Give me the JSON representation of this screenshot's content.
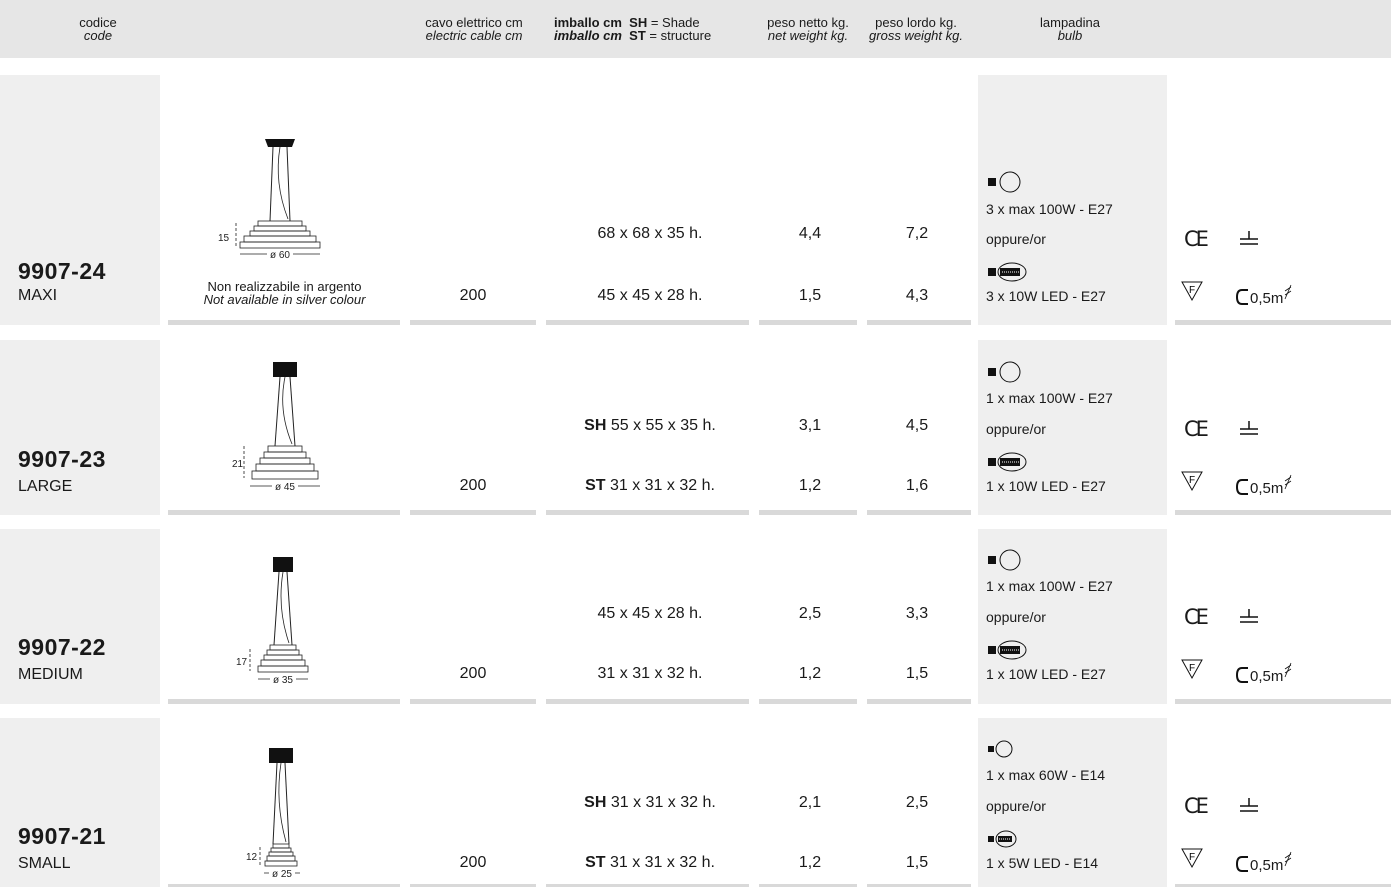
{
  "header": {
    "code_it": "codice",
    "code_en": "code",
    "cable_it": "cavo elettrico cm",
    "cable_en": "electric cable cm",
    "pack_it_label": "imballo cm",
    "pack_en_label": "imballo cm",
    "sh_abbr": "SH",
    "sh_text": "= Shade",
    "st_abbr": "ST",
    "st_text": "= structure",
    "net_it": "peso netto kg.",
    "net_en": "net weight kg.",
    "gross_it": "peso lordo kg.",
    "gross_en": "gross weight kg.",
    "bulb_it": "lampadina",
    "bulb_en": "bulb"
  },
  "rows": [
    {
      "code": "9907-24",
      "size": "MAXI",
      "dim_h": "15",
      "dim_d": "ø 60",
      "note_it": "Non realizzabile in argento",
      "note_en": "Not available in silver colour",
      "cable": "200",
      "pack1_prefix": "",
      "pack1": "68 x 68 x 35 h.",
      "pack2_prefix": "",
      "pack2": "45 x 45 x 28 h.",
      "net1": "4,4",
      "gross1": "7,2",
      "net2": "1,5",
      "gross2": "4,3",
      "bulb1": "3 x max 100W - E27",
      "or": "oppure/or",
      "bulb2": "3 x 10W LED - E27",
      "cable_len": "0,5m"
    },
    {
      "code": "9907-23",
      "size": "LARGE",
      "dim_h": "21",
      "dim_d": "ø 45",
      "cable": "200",
      "pack1_prefix": "SH",
      "pack1": "55 x 55 x 35 h.",
      "pack2_prefix": "ST",
      "pack2": "31 x 31 x 32 h.",
      "net1": "3,1",
      "gross1": "4,5",
      "net2": "1,2",
      "gross2": "1,6",
      "bulb1": "1 x max 100W - E27",
      "or": "oppure/or",
      "bulb2": "1 x 10W LED - E27",
      "cable_len": "0,5m"
    },
    {
      "code": "9907-22",
      "size": "MEDIUM",
      "dim_h": "17",
      "dim_d": "ø 35",
      "cable": "200",
      "pack1_prefix": "",
      "pack1": "45 x 45 x 28 h.",
      "pack2_prefix": "",
      "pack2": "31 x 31 x 32 h.",
      "net1": "2,5",
      "gross1": "3,3",
      "net2": "1,2",
      "gross2": "1,5",
      "bulb1": "1 x max 100W - E27",
      "or": "oppure/or",
      "bulb2": "1 x 10W LED - E27",
      "cable_len": "0,5m"
    },
    {
      "code": "9907-21",
      "size": "SMALL",
      "dim_h": "12",
      "dim_d": "ø 25",
      "cable": "200",
      "pack1_prefix": "SH",
      "pack1": "31 x 31 x 32 h.",
      "pack2_prefix": "ST",
      "pack2": "31 x 31 x 32 h.",
      "net1": "2,1",
      "gross1": "2,5",
      "net2": "1,2",
      "gross2": "1,5",
      "bulb1": "1 x max 60W - E14",
      "or": "oppure/or",
      "bulb2": "1 x 5W LED - E14",
      "cable_len": "0,5m"
    }
  ],
  "symbols": {
    "ce": "CE",
    "f_mark": "F"
  },
  "colors": {
    "header_bg": "#e6e6e6",
    "cell_bg": "#efefef",
    "separator": "#d9d9d9",
    "text": "#1a1a1a"
  }
}
